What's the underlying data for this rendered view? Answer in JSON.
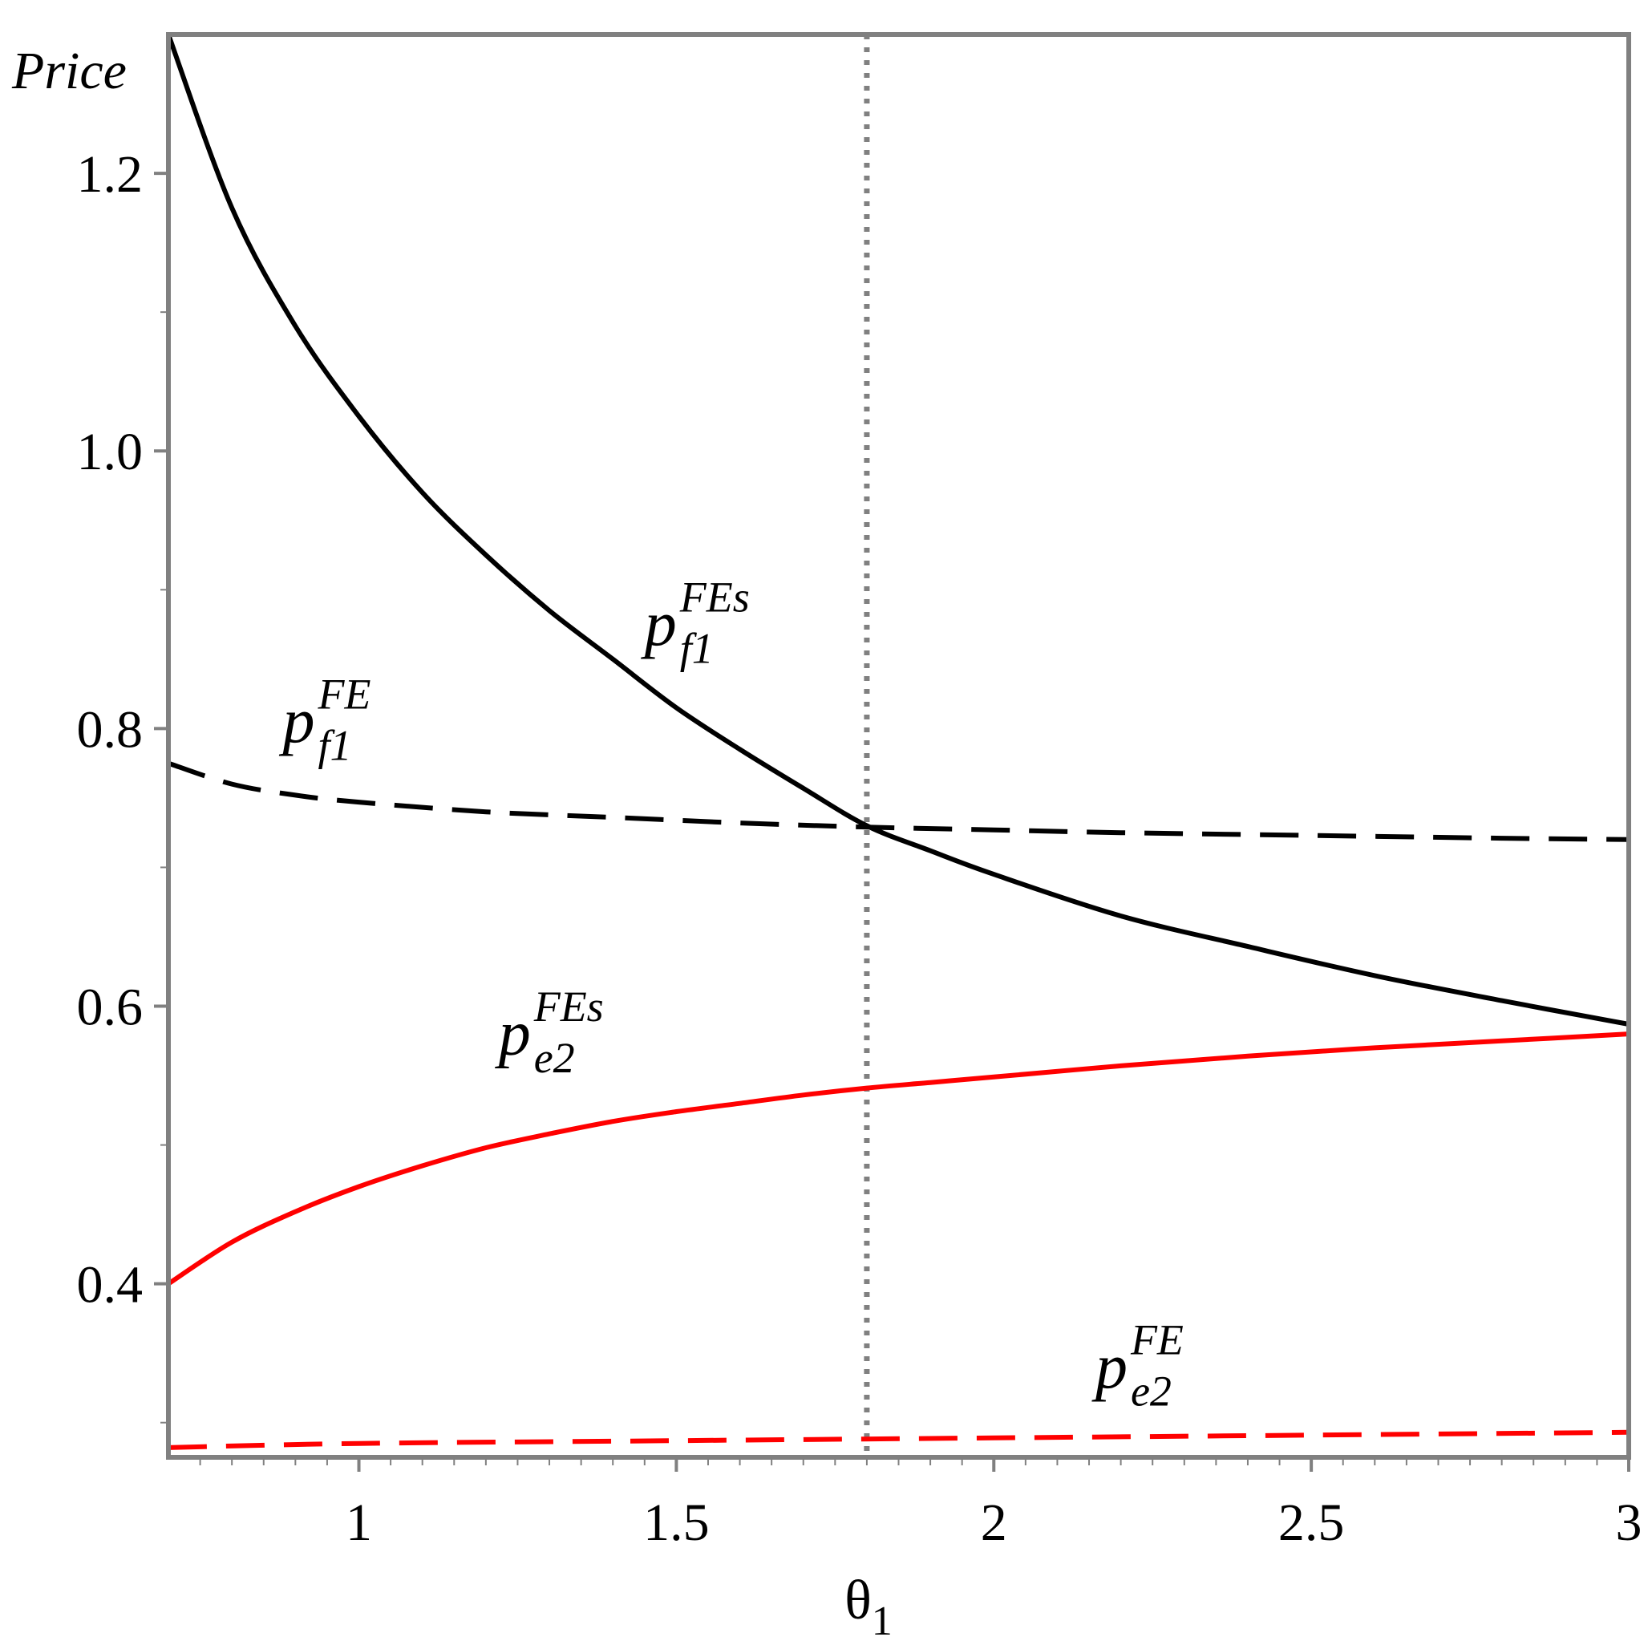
{
  "chart_data": {
    "type": "line",
    "title": "",
    "xlabel": "θ",
    "xlabel_subscript": "1",
    "ylabel": "Price",
    "xlim": [
      0.7,
      3.0
    ],
    "ylim": [
      0.275,
      1.3
    ],
    "x_ticks": [
      {
        "value": 1,
        "label": "1"
      },
      {
        "value": 1.5,
        "label": "1.5"
      },
      {
        "value": 2,
        "label": "2"
      },
      {
        "value": 2.5,
        "label": "2.5"
      },
      {
        "value": 3,
        "label": "3"
      }
    ],
    "y_ticks": [
      {
        "value": 0.4,
        "label": "0.4"
      },
      {
        "value": 0.6,
        "label": "0.6"
      },
      {
        "value": 0.8,
        "label": "0.8"
      },
      {
        "value": 1.0,
        "label": "1.0"
      },
      {
        "value": 1.2,
        "label": "1.2"
      }
    ],
    "grid": false,
    "reference_lines": [
      {
        "orientation": "vertical",
        "x": 1.8,
        "style": "dotted",
        "color": "#808080"
      }
    ],
    "series": [
      {
        "id": "pf1_FEs",
        "color": "#000000",
        "style": "solid",
        "x": [
          0.7,
          0.8,
          0.9,
          1.0,
          1.1,
          1.2,
          1.3,
          1.4,
          1.5,
          1.6,
          1.7,
          1.8,
          1.9,
          2.0,
          2.2,
          2.4,
          2.6,
          2.8,
          3.0
        ],
        "y": [
          1.3,
          1.175,
          1.09,
          1.025,
          0.97,
          0.925,
          0.885,
          0.85,
          0.815,
          0.785,
          0.757,
          0.73,
          0.712,
          0.695,
          0.665,
          0.643,
          0.622,
          0.604,
          0.587
        ]
      },
      {
        "id": "pf1_FE",
        "color": "#000000",
        "style": "dashed",
        "x": [
          0.7,
          0.8,
          0.9,
          1.0,
          1.2,
          1.4,
          1.6,
          1.8,
          2.0,
          2.2,
          2.5,
          2.8,
          3.0
        ],
        "y": [
          0.775,
          0.76,
          0.752,
          0.747,
          0.74,
          0.736,
          0.732,
          0.729,
          0.727,
          0.725,
          0.723,
          0.721,
          0.72
        ]
      },
      {
        "id": "pe2_FEs",
        "color": "#ff0000",
        "style": "solid",
        "x": [
          0.7,
          0.8,
          0.9,
          1.0,
          1.1,
          1.2,
          1.3,
          1.4,
          1.5,
          1.6,
          1.7,
          1.8,
          1.9,
          2.0,
          2.2,
          2.4,
          2.6,
          2.8,
          3.0
        ],
        "y": [
          0.4,
          0.43,
          0.452,
          0.47,
          0.485,
          0.498,
          0.508,
          0.517,
          0.524,
          0.53,
          0.536,
          0.541,
          0.545,
          0.549,
          0.557,
          0.564,
          0.57,
          0.575,
          0.58
        ]
      },
      {
        "id": "pe2_FE",
        "color": "#ff0000",
        "style": "dashed",
        "x": [
          0.7,
          1.0,
          1.5,
          2.0,
          2.5,
          3.0
        ],
        "y": [
          0.282,
          0.285,
          0.287,
          0.289,
          0.291,
          0.293
        ]
      }
    ],
    "annotations": [
      {
        "id": "pf1_FEs",
        "main": "p",
        "sup": "FEs",
        "sub": "f1",
        "x": 1.45,
        "y": 0.86
      },
      {
        "id": "pf1_FE",
        "main": "p",
        "sup": "FE",
        "sub": "f1",
        "x": 0.88,
        "y": 0.79
      },
      {
        "id": "pe2_FEs",
        "main": "p",
        "sup": "FEs",
        "sub": "e2",
        "x": 1.22,
        "y": 0.565
      },
      {
        "id": "pe2_FE",
        "main": "p",
        "sup": "FE",
        "sub": "e2",
        "x": 2.16,
        "y": 0.325
      }
    ]
  }
}
